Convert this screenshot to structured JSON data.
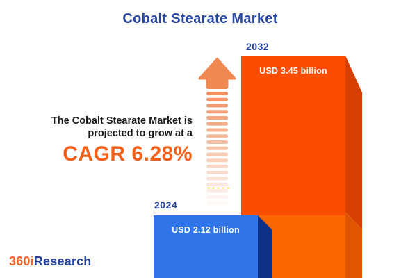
{
  "title": "Cobalt Stearate Market",
  "annotation": {
    "line1": "The Cobalt Stearate Market is",
    "line2": "projected to grow at a",
    "cagr": "CAGR 6.28%"
  },
  "logo": {
    "prefix": "360i",
    "suffix": "Research"
  },
  "chart_data": {
    "type": "bar",
    "title": "Cobalt Stearate Market",
    "categories": [
      "2024",
      "2032"
    ],
    "values": [
      2.12,
      3.45
    ],
    "unit": "USD billion",
    "value_labels": [
      "USD 2.12 billion",
      "USD 3.45 billion"
    ],
    "cagr_percent": 6.28,
    "annotation": "The Cobalt Stearate Market is projected to grow at a CAGR 6.28%",
    "legend": "none",
    "grid": false,
    "style": "3d-infographic-bars-with-growth-arrow"
  },
  "colors": {
    "title_blue": "#2847A3",
    "year_blue": "#24419B",
    "accent_orange": "#F4601A",
    "bar_orange": "#FB4D00",
    "bar_orange_light": "#FB6600",
    "bar_orange_side": "#D74000",
    "bar_orange_side_light": "#E05600",
    "bar_blue": "#2F74E8",
    "bar_blue_side": "#0E3086",
    "arrow_orange": "#F08852",
    "dash_yellow": "#F0E400",
    "text_dark": "#1A1A1A",
    "logo_orange": "#F26322",
    "logo_blue": "#24419B",
    "background": "#FFFFFF"
  }
}
